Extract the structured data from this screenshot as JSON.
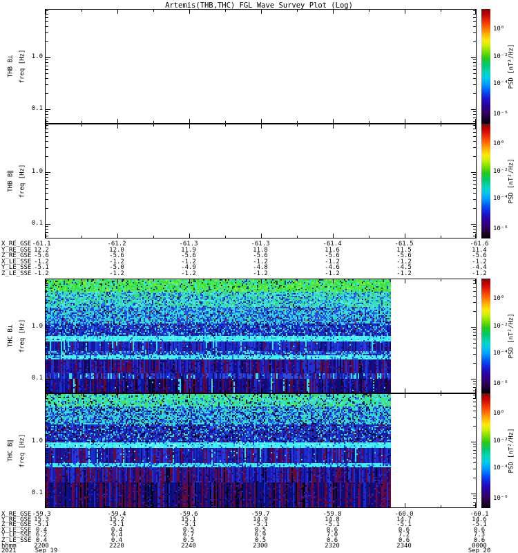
{
  "title": "Artemis(THB,THC) FGL Wave Survey Plot (Log)",
  "colorbar": {
    "label": "PSD [nT²/Hz]",
    "ticks": [
      "10⁰",
      "10⁻²",
      "10⁻⁴",
      "10⁻⁶"
    ]
  },
  "panels": [
    {
      "name": "THB B⊥",
      "axis": "freq [Hz]",
      "yticks": [
        "1.0",
        "0.1"
      ],
      "has_data": false,
      "profile": null
    },
    {
      "name": "THB B∥",
      "axis": "freq [Hz]",
      "yticks": [
        "1.0",
        "0.1"
      ],
      "has_data": false,
      "profile": null
    },
    {
      "name": "THC B⊥",
      "axis": "freq [Hz]",
      "yticks": [
        "1.0",
        "0.1"
      ],
      "has_data": true,
      "profile": "bperp"
    },
    {
      "name": "THC B∥",
      "axis": "freq [Hz]",
      "yticks": [
        "1.0",
        "0.1"
      ],
      "has_data": true,
      "profile": "bpar"
    }
  ],
  "ephemeris_mid": {
    "rows": [
      {
        "label": "X_RE_GSE",
        "values": [
          "-61.1",
          "-61.2",
          "-61.3",
          "-61.3",
          "-61.4",
          "-61.5",
          "-61.6"
        ]
      },
      {
        "label": "Y_RE_GSE",
        "values": [
          "12.2",
          "12.0",
          "11.9",
          "11.8",
          "11.6",
          "11.5",
          "11.4"
        ]
      },
      {
        "label": "Z_RE_GSE",
        "values": [
          "-5.6",
          "-5.6",
          "-5.6",
          "-5.6",
          "-5.6",
          "-5.6",
          "-5.6"
        ]
      },
      {
        "label": "X_LE_SSE",
        "values": [
          "-1.2",
          "-1.2",
          "-1.2",
          "-1.2",
          "-1.2",
          "-1.2",
          "-1.2"
        ]
      },
      {
        "label": "Y_LE_SSE",
        "values": [
          "-5.1",
          "-5.0",
          "-4.9",
          "-4.8",
          "-4.6",
          "-4.5",
          "-4.4"
        ]
      },
      {
        "label": "Z_LE_SSE",
        "values": [
          "-1.2",
          "-1.2",
          "-1.2",
          "-1.2",
          "-1.2",
          "-1.2",
          "-1.2"
        ]
      }
    ]
  },
  "ephemeris_bottom": {
    "rows": [
      {
        "label": "X_RE_GSE",
        "values": [
          "-59.3",
          "-59.4",
          "-59.6",
          "-59.7",
          "-59.8",
          "-60.0",
          "-60.1"
        ]
      },
      {
        "label": "Y_RE_GSE",
        "values": [
          "15.3",
          "15.2",
          "15.1",
          "14.9",
          "14.8",
          "14.7",
          "14.6"
        ]
      },
      {
        "label": "Z_RE_GSE",
        "values": [
          "-5.1",
          "-5.1",
          "-5.1",
          "-5.1",
          "-5.1",
          "-5.1",
          "-5.1"
        ]
      },
      {
        "label": "X_LE_SSE",
        "values": [
          "0.4",
          "0.4",
          "0.5",
          "0.5",
          "0.6",
          "0.6",
          "0.6"
        ]
      },
      {
        "label": "Y_LE_SSE",
        "values": [
          "6.2",
          "6.4",
          "6.7",
          "6.9",
          "7.0",
          "7.2",
          "7.3"
        ]
      },
      {
        "label": "Z_LE_SSE",
        "values": [
          "0.4",
          "0.4",
          "0.5",
          "0.5",
          "0.6",
          "0.6",
          "0.6"
        ]
      }
    ],
    "time": {
      "label": "hhmm",
      "values": [
        "2200",
        "2220",
        "2240",
        "2300",
        "2320",
        "2340",
        "0000"
      ]
    },
    "date": {
      "label": "2021",
      "first": "Sep 19",
      "last": "Sep 20"
    }
  },
  "chart_data": {
    "type": "heatmap",
    "title": "Artemis(THB,THC) FGL Wave Survey Plot (Log)",
    "ylabel": "freq [Hz]",
    "yscale": "log",
    "ytick_labels": [
      "1.0",
      "0.1"
    ],
    "y_range_hz": [
      0.05,
      8
    ],
    "colorbar": {
      "label": "PSD [nT²/Hz]",
      "tick_labels": [
        "10⁰",
        "10⁻²",
        "10⁻⁴",
        "10⁻⁶"
      ],
      "range": [
        1e-07,
        10
      ],
      "colormap": "rainbow (red=high, black=low)"
    },
    "x_axis": {
      "tick_times_hhmm": [
        "2200",
        "2220",
        "2240",
        "2300",
        "2320",
        "2340",
        "0000"
      ],
      "start_date": "2021 Sep 19",
      "end_date": "Sep 20"
    },
    "panels": [
      {
        "name": "THB B⊥",
        "data": "blank (no data)"
      },
      {
        "name": "THB B∥",
        "data": "blank (no data)"
      },
      {
        "name": "THC B⊥",
        "data": "broadband noise spectrogram; PSD ~10⁻¹ (green) at lowest freq decreasing to ~10⁻⁶ (dark blue/purple) near 0.05–0.1 Hz; bright cyan horizontal bands near 0.3 and 0.2 Hz; data ends ~2336 (right fifth of panel blank)"
      },
      {
        "name": "THC B∥",
        "data": "broadband noise spectrogram, slightly weaker than B⊥; cyan bands near 0.3 and 0.2 Hz; dark maroon/blue vertical striations at low freq; data ends ~2336"
      }
    ],
    "ephemeris_thb": {
      "X_RE_GSE": [
        -61.1,
        -61.2,
        -61.3,
        -61.3,
        -61.4,
        -61.5,
        -61.6
      ],
      "Y_RE_GSE": [
        12.2,
        12.0,
        11.9,
        11.8,
        11.6,
        11.5,
        11.4
      ],
      "Z_RE_GSE": [
        -5.6,
        -5.6,
        -5.6,
        -5.6,
        -5.6,
        -5.6,
        -5.6
      ],
      "X_LE_SSE": [
        -1.2,
        -1.2,
        -1.2,
        -1.2,
        -1.2,
        -1.2,
        -1.2
      ],
      "Y_LE_SSE": [
        -5.1,
        -5.0,
        -4.9,
        -4.8,
        -4.6,
        -4.5,
        -4.4
      ],
      "Z_LE_SSE": [
        -1.2,
        -1.2,
        -1.2,
        -1.2,
        -1.2,
        -1.2,
        -1.2
      ]
    },
    "ephemeris_thc": {
      "X_RE_GSE": [
        -59.3,
        -59.4,
        -59.6,
        -59.7,
        -59.8,
        -60.0,
        -60.1
      ],
      "Y_RE_GSE": [
        15.3,
        15.2,
        15.1,
        14.9,
        14.8,
        14.7,
        14.6
      ],
      "Z_RE_GSE": [
        -5.1,
        -5.1,
        -5.1,
        -5.1,
        -5.1,
        -5.1,
        -5.1
      ],
      "X_LE_SSE": [
        0.4,
        0.4,
        0.5,
        0.5,
        0.6,
        0.6,
        0.6
      ],
      "Y_LE_SSE": [
        6.2,
        6.4,
        6.7,
        6.9,
        7.0,
        7.2,
        7.3
      ],
      "Z_LE_SSE": [
        0.4,
        0.4,
        0.5,
        0.5,
        0.6,
        0.6,
        0.6
      ]
    }
  }
}
